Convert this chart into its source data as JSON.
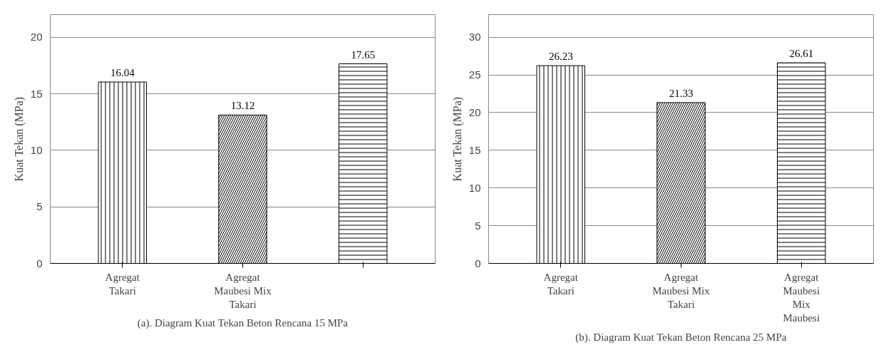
{
  "chart_data": [
    {
      "type": "bar",
      "xlabel": null,
      "ylabel": "Kuat Tekan (MPa)",
      "categories": [
        "Agregat\nTakari",
        "Agregat\nMaubesi Mix\nTakari",
        null
      ],
      "values": [
        16.04,
        13.12,
        17.65
      ],
      "colors": [
        "#ffffff",
        "#ffffff",
        "#ffffff"
      ],
      "ylim": [
        0,
        22
      ],
      "yticks": [
        0,
        5,
        10,
        15,
        20
      ],
      "grid": "y",
      "data_labels": true,
      "annotations": [
        "(a). Diagram Kuat Tekan Beton Rencana 15 MPa"
      ]
    },
    {
      "type": "bar",
      "ylabel": "Kuat Tekan (MPa)",
      "categories": [
        "Agregat\nTakari",
        "Agregat\nMaubesi Mix\nTakari",
        "Agregat\nMaubesi\nMix\nMaubesi"
      ],
      "values": [
        26.23,
        21.33,
        26.61
      ],
      "colors": [
        "#ffffff",
        "#ffffff",
        "#ffffff"
      ],
      "ylim": [
        0,
        33
      ],
      "yticks": [
        0,
        5,
        10,
        15,
        20,
        25,
        30
      ],
      "grid": "y",
      "data_labels": true,
      "annotations": [
        "(b). Diagram Kuat Tekan Beton Rencana 25 MPa"
      ]
    }
  ]
}
